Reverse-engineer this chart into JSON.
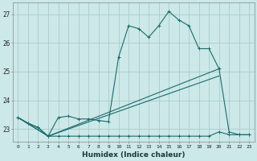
{
  "xlabel": "Humidex (Indice chaleur)",
  "bg_color": "#cce8e8",
  "grid_color": "#aacccc",
  "line_color": "#1a6b6b",
  "xlim_min": -0.5,
  "xlim_max": 23.5,
  "ylim_min": 22.55,
  "ylim_max": 27.4,
  "yticks": [
    23,
    24,
    25,
    26,
    27
  ],
  "xticks": [
    0,
    1,
    2,
    3,
    4,
    5,
    6,
    7,
    8,
    9,
    10,
    11,
    12,
    13,
    14,
    15,
    16,
    17,
    18,
    19,
    20,
    21,
    22,
    23
  ],
  "series1_x": [
    0,
    1,
    2,
    3,
    4,
    5,
    6,
    7,
    8,
    9,
    10,
    11,
    12,
    13,
    14,
    15,
    16,
    17,
    18,
    19,
    20,
    21,
    22,
    23
  ],
  "series1_y": [
    23.4,
    23.2,
    23.05,
    22.75,
    23.4,
    23.45,
    23.35,
    23.35,
    23.3,
    23.25,
    25.5,
    26.6,
    26.5,
    26.2,
    26.6,
    27.1,
    26.8,
    26.6,
    25.8,
    25.8,
    25.1,
    22.9,
    22.8,
    22.8
  ],
  "series2_x": [
    0,
    1,
    2,
    3,
    4,
    5,
    6,
    7,
    8,
    9,
    10,
    11,
    12,
    13,
    14,
    15,
    16,
    17,
    18,
    19,
    20,
    21,
    22,
    23
  ],
  "series2_y": [
    23.4,
    23.2,
    23.05,
    22.75,
    22.75,
    22.75,
    22.75,
    22.75,
    22.75,
    22.75,
    22.75,
    22.75,
    22.75,
    22.75,
    22.75,
    22.75,
    22.75,
    22.75,
    22.75,
    22.75,
    22.9,
    22.8,
    22.8,
    22.8
  ],
  "series3_x": [
    0,
    3,
    20
  ],
  "series3_y": [
    23.4,
    22.75,
    25.1
  ],
  "series4_x": [
    0,
    3,
    20
  ],
  "series4_y": [
    23.4,
    22.75,
    24.85
  ]
}
